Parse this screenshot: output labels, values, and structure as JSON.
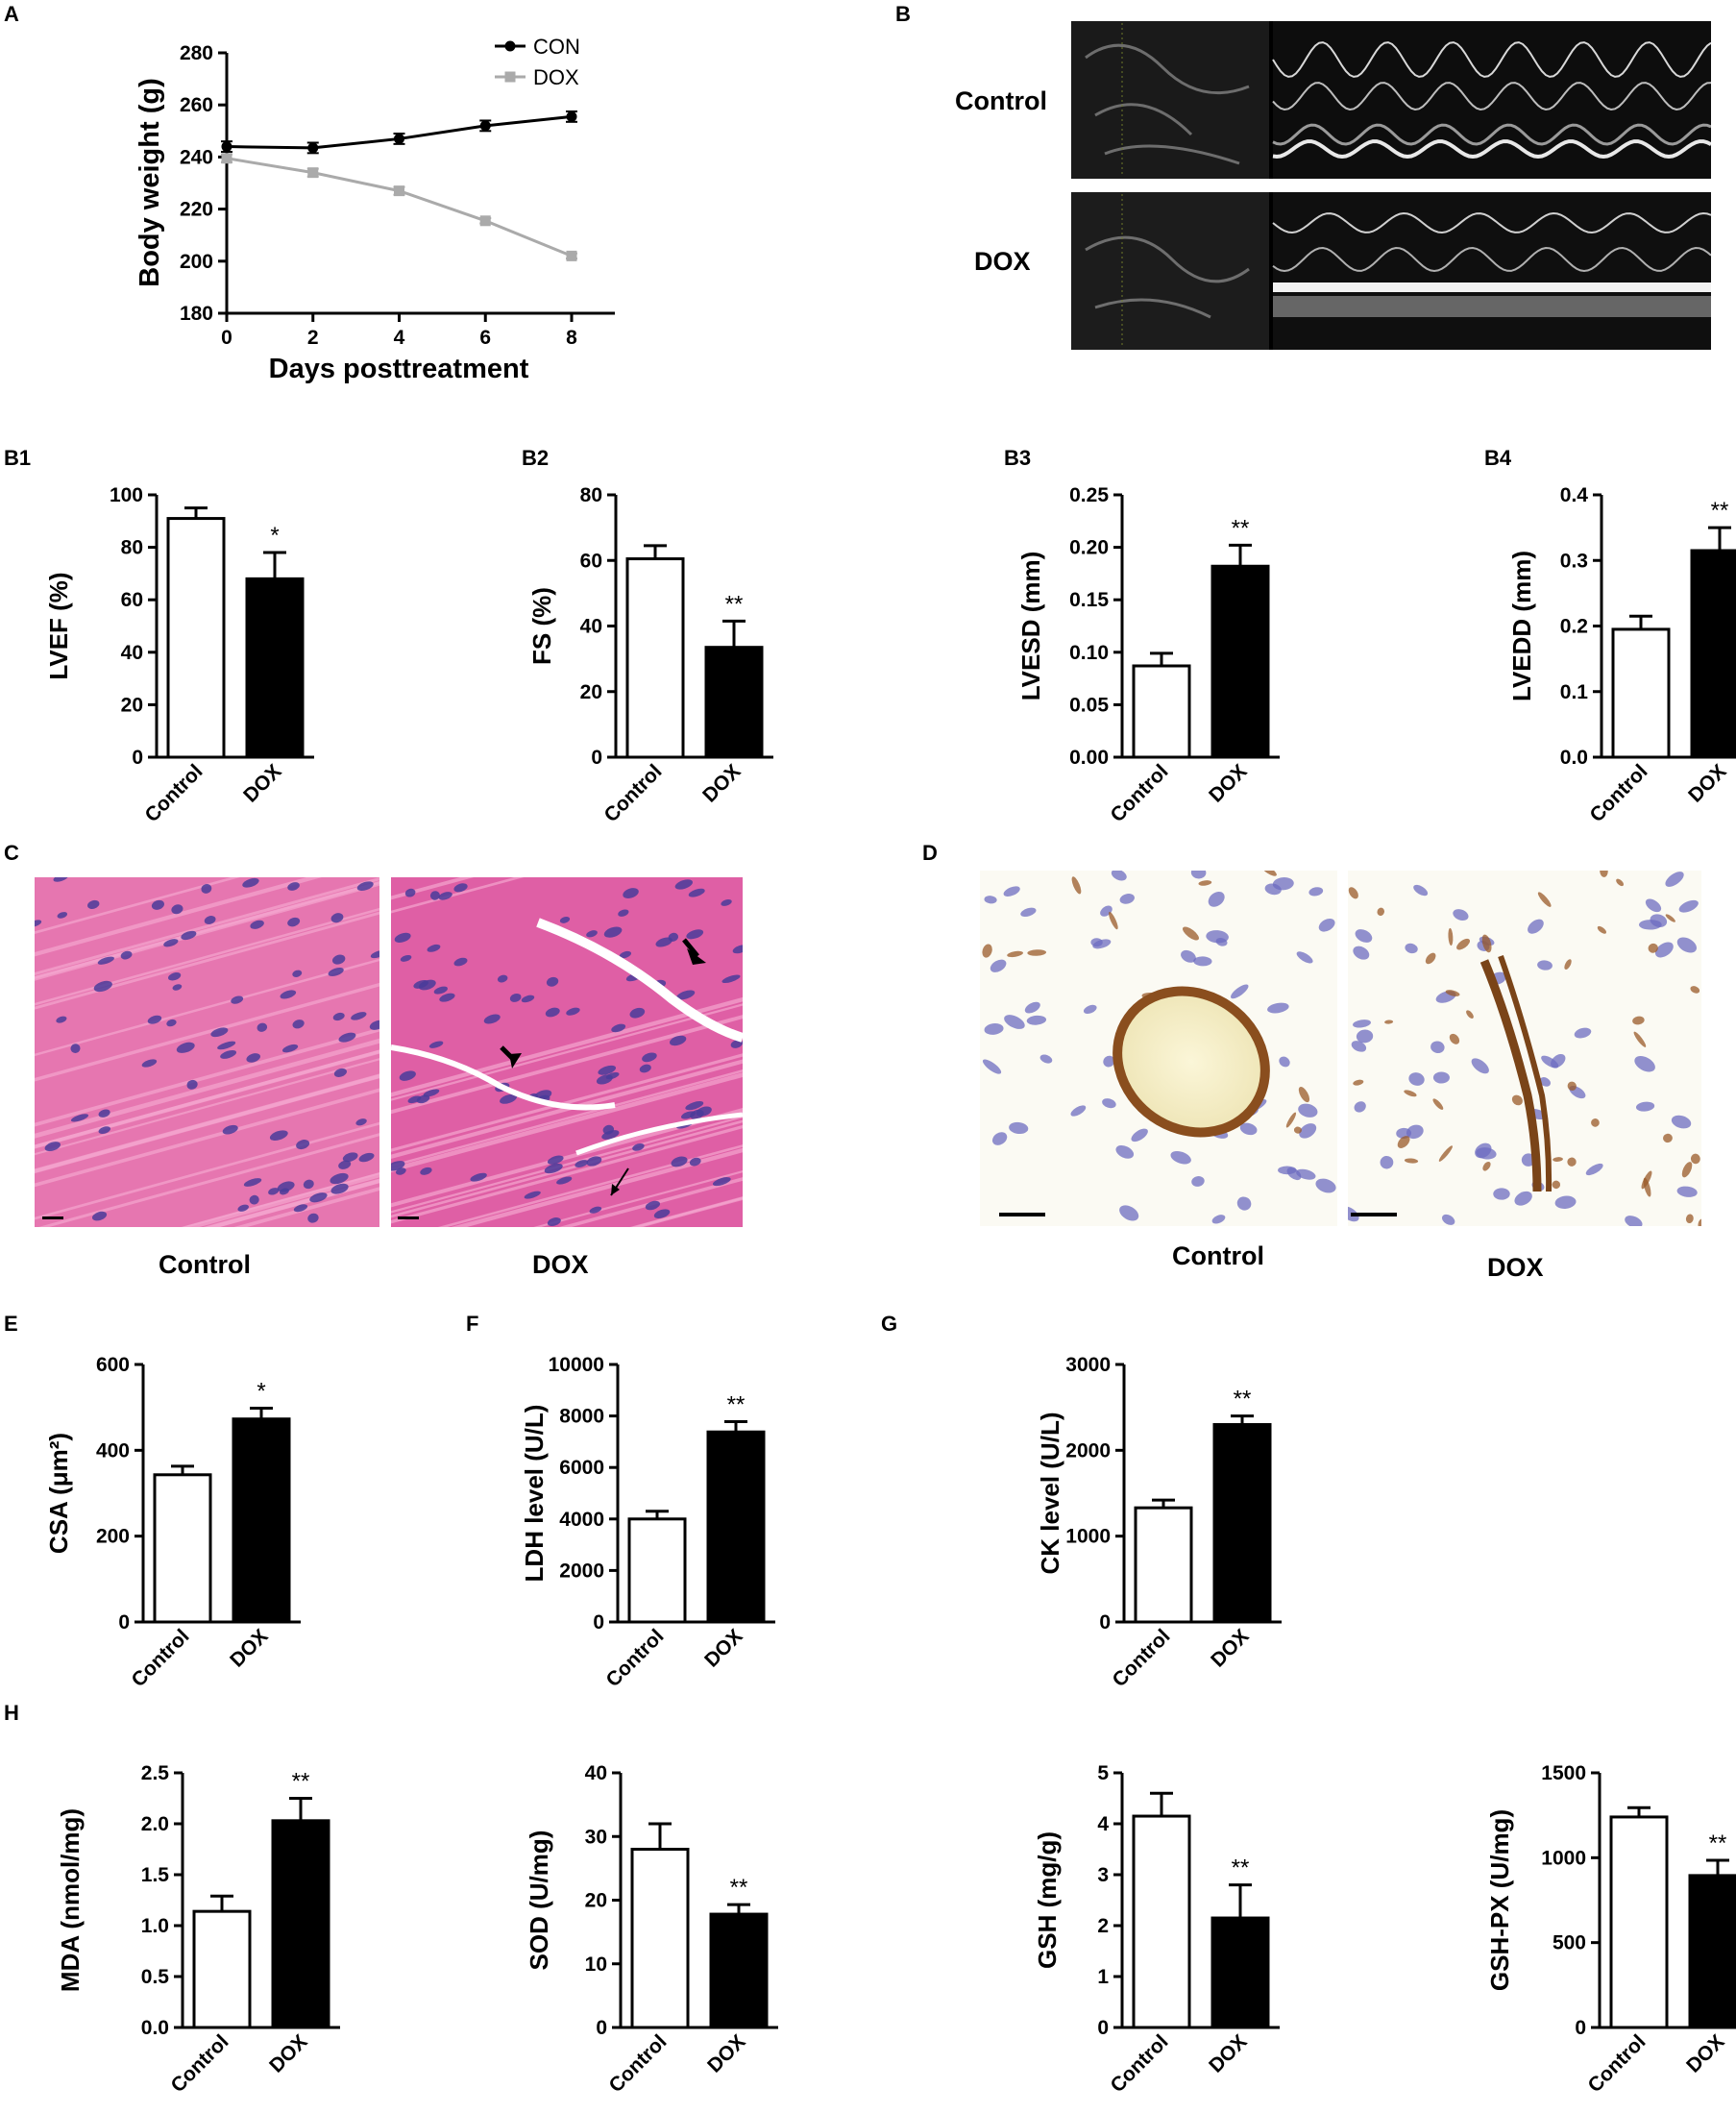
{
  "panels": {
    "A": "A",
    "B": "B",
    "B1": "B1",
    "B2": "B2",
    "B3": "B3",
    "B4": "B4",
    "C": "C",
    "D": "D",
    "E": "E",
    "F": "F",
    "G": "G",
    "H": "H"
  },
  "echo": {
    "control_label": "Control",
    "dox_label": "DOX"
  },
  "histology_c": {
    "control_caption": "Control",
    "dox_caption": "DOX"
  },
  "ihc_d": {
    "control_caption": "Control",
    "dox_caption": "DOX"
  },
  "colors": {
    "con_line": "#000000",
    "dox_line": "#aaaaaa",
    "he_stain": "#e060a8",
    "ihc_brown": "#9a5a28",
    "nuclei": "#4a3c9a"
  },
  "chart_data": [
    {
      "id": "A",
      "type": "line",
      "xlabel": "Days posttreatment",
      "ylabel": "Body weight (g)",
      "x": [
        0,
        2,
        4,
        6,
        8
      ],
      "xticks": [
        "0",
        "2",
        "4",
        "6",
        "8"
      ],
      "yticks": [
        "180",
        "200",
        "220",
        "240",
        "260",
        "280"
      ],
      "ylim": [
        180,
        280
      ],
      "legend": "top-right",
      "series": [
        {
          "name": "CON",
          "values": [
            244,
            243.5,
            247,
            252,
            255.5
          ],
          "err": [
            2,
            2,
            2,
            2,
            2
          ]
        },
        {
          "name": "DOX",
          "values": [
            239.5,
            234,
            227,
            215.5,
            202
          ],
          "err": [
            1.5,
            1.5,
            1.5,
            1,
            1
          ]
        }
      ]
    },
    {
      "id": "B1",
      "type": "bar",
      "categories": [
        "Control",
        "DOX"
      ],
      "values": [
        91,
        68
      ],
      "err": [
        4,
        10
      ],
      "sig": [
        "",
        "*"
      ],
      "ylabel": "LVEF (%)",
      "ylim": [
        0,
        100
      ],
      "yticks": [
        "0",
        "20",
        "40",
        "60",
        "80",
        "100"
      ]
    },
    {
      "id": "B2",
      "type": "bar",
      "categories": [
        "Control",
        "DOX"
      ],
      "values": [
        60.5,
        33.5
      ],
      "err": [
        4,
        8
      ],
      "sig": [
        "",
        "**"
      ],
      "ylabel": "FS (%)",
      "ylim": [
        0,
        80
      ],
      "yticks": [
        "0",
        "20",
        "40",
        "60",
        "80"
      ]
    },
    {
      "id": "B3",
      "type": "bar",
      "categories": [
        "Control",
        "DOX"
      ],
      "values": [
        0.087,
        0.182
      ],
      "err": [
        0.012,
        0.02
      ],
      "sig": [
        "",
        "**"
      ],
      "ylabel": "LVESD (mm)",
      "ylim": [
        0,
        0.25
      ],
      "yticks": [
        "0.00",
        "0.05",
        "0.10",
        "0.15",
        "0.20",
        "0.25"
      ]
    },
    {
      "id": "B4",
      "type": "bar",
      "categories": [
        "Control",
        "DOX"
      ],
      "values": [
        0.195,
        0.315
      ],
      "err": [
        0.02,
        0.035
      ],
      "sig": [
        "",
        "**"
      ],
      "ylabel": "LVEDD (mm)",
      "ylim": [
        0,
        0.4
      ],
      "yticks": [
        "0.0",
        "0.1",
        "0.2",
        "0.3",
        "0.4"
      ]
    },
    {
      "id": "E",
      "type": "bar",
      "categories": [
        "Control",
        "DOX"
      ],
      "values": [
        343,
        473
      ],
      "err": [
        20,
        25
      ],
      "sig": [
        "",
        "*"
      ],
      "ylabel": "CSA (μm²)",
      "ylim": [
        0,
        600
      ],
      "yticks": [
        "0",
        "200",
        "400",
        "600"
      ]
    },
    {
      "id": "F",
      "type": "bar",
      "categories": [
        "Control",
        "DOX"
      ],
      "values": [
        4000,
        7380
      ],
      "err": [
        300,
        400
      ],
      "sig": [
        "",
        "**"
      ],
      "ylabel": "LDH level (U/L)",
      "ylim": [
        0,
        10000
      ],
      "yticks": [
        "0",
        "2000",
        "4000",
        "6000",
        "8000",
        "10000"
      ]
    },
    {
      "id": "G",
      "type": "bar",
      "categories": [
        "Control",
        "DOX"
      ],
      "values": [
        1330,
        2300
      ],
      "err": [
        90,
        100
      ],
      "sig": [
        "",
        "**"
      ],
      "ylabel": "CK level (U/L)",
      "ylim": [
        0,
        3000
      ],
      "yticks": [
        "0",
        "1000",
        "2000",
        "3000"
      ]
    },
    {
      "id": "H1",
      "type": "bar",
      "categories": [
        "Control",
        "DOX"
      ],
      "values": [
        1.14,
        2.03
      ],
      "err": [
        0.15,
        0.22
      ],
      "sig": [
        "",
        "**"
      ],
      "ylabel": "MDA (nmol/mg)",
      "ylim": [
        0,
        2.5
      ],
      "yticks": [
        "0.0",
        "0.5",
        "1.0",
        "1.5",
        "2.0",
        "2.5"
      ]
    },
    {
      "id": "H2",
      "type": "bar",
      "categories": [
        "Control",
        "DOX"
      ],
      "values": [
        28,
        17.8
      ],
      "err": [
        4,
        1.5
      ],
      "sig": [
        "",
        "**"
      ],
      "ylabel": "SOD (U/mg)",
      "ylim": [
        0,
        40
      ],
      "yticks": [
        "0",
        "10",
        "20",
        "30",
        "40"
      ]
    },
    {
      "id": "H3",
      "type": "bar",
      "categories": [
        "Control",
        "DOX"
      ],
      "values": [
        4.15,
        2.15
      ],
      "err": [
        0.45,
        0.65
      ],
      "sig": [
        "",
        "**"
      ],
      "ylabel": "GSH (mg/g)",
      "ylim": [
        0,
        5
      ],
      "yticks": [
        "0",
        "1",
        "2",
        "3",
        "4",
        "5"
      ]
    },
    {
      "id": "H4",
      "type": "bar",
      "categories": [
        "Control",
        "DOX"
      ],
      "values": [
        1240,
        895
      ],
      "err": [
        55,
        90
      ],
      "sig": [
        "",
        "**"
      ],
      "ylabel": "GSH-PX (U/mg)",
      "ylim": [
        0,
        1500
      ],
      "yticks": [
        "0",
        "500",
        "1000",
        "1500"
      ]
    }
  ]
}
